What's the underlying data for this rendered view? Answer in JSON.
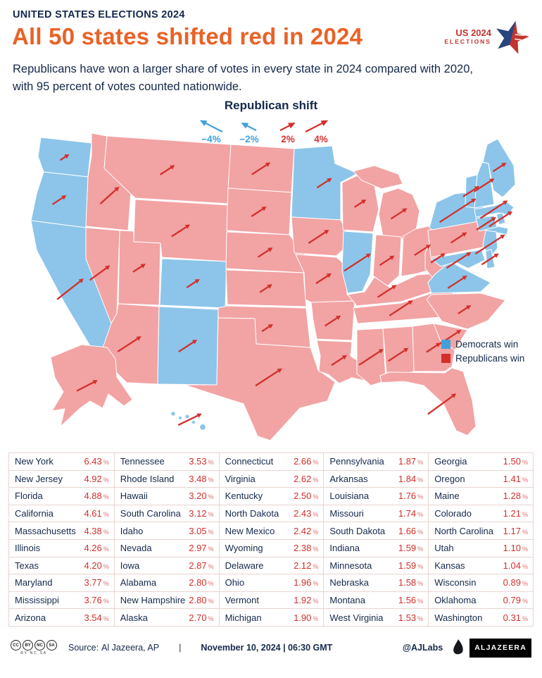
{
  "header": {
    "kicker": "UNITED STATES ELECTIONS 2024",
    "title": "All 50 states shifted red in 2024",
    "subtitle": "Republicans have won a larger share of votes in every state in 2024 compared with 2020, with 95 percent of votes counted nationwide.",
    "logo": {
      "line1": "US 2024",
      "line2": "ELECTIONS"
    }
  },
  "map_legend": {
    "title": "Republican shift",
    "ticks": [
      {
        "label": "−4%",
        "color": "dem"
      },
      {
        "label": "−2%",
        "color": "dem"
      },
      {
        "label": "2%",
        "color": "rep"
      },
      {
        "label": "4%",
        "color": "rep"
      }
    ]
  },
  "win_legend": {
    "dem": "Democrats win",
    "rep": "Republicans win"
  },
  "colors": {
    "navy": "#15284B",
    "orange": "#E96227",
    "dem_fill": "#8CC5E9",
    "rep_fill": "#F2A3A4",
    "dem_arrow": "#41A0DA",
    "rep_arrow": "#D2302C",
    "value_red": "#D2302C",
    "grid_line": "#E8D4D0"
  },
  "chart_data": {
    "type": "map",
    "title": "Republican vote-share shift by state, 2024 vs 2020 (percentage points)",
    "note": "95 percent of votes counted nationwide",
    "legend": [
      "Democrats win",
      "Republicans win"
    ],
    "shift_axis_ticks": [
      "−4%",
      "−2%",
      "2%",
      "4%"
    ],
    "unit_suffix": "%",
    "states": [
      {
        "code": "NY",
        "name": "New York",
        "shift": 6.43,
        "winner": "dem"
      },
      {
        "code": "NJ",
        "name": "New Jersey",
        "shift": 4.92,
        "winner": "dem"
      },
      {
        "code": "FL",
        "name": "Florida",
        "shift": 4.88,
        "winner": "rep"
      },
      {
        "code": "CA",
        "name": "California",
        "shift": 4.61,
        "winner": "dem"
      },
      {
        "code": "MA",
        "name": "Massachusetts",
        "shift": 4.38,
        "winner": "dem"
      },
      {
        "code": "IL",
        "name": "Illinois",
        "shift": 4.26,
        "winner": "dem"
      },
      {
        "code": "TX",
        "name": "Texas",
        "shift": 4.2,
        "winner": "rep"
      },
      {
        "code": "MD",
        "name": "Maryland",
        "shift": 3.77,
        "winner": "dem"
      },
      {
        "code": "MS",
        "name": "Mississippi",
        "shift": 3.76,
        "winner": "rep"
      },
      {
        "code": "AZ",
        "name": "Arizona",
        "shift": 3.54,
        "winner": "rep"
      },
      {
        "code": "TN",
        "name": "Tennessee",
        "shift": 3.53,
        "winner": "rep"
      },
      {
        "code": "RI",
        "name": "Rhode Island",
        "shift": 3.48,
        "winner": "dem"
      },
      {
        "code": "HI",
        "name": "Hawaii",
        "shift": 3.2,
        "winner": "dem"
      },
      {
        "code": "SC",
        "name": "South Carolina",
        "shift": 3.12,
        "winner": "rep"
      },
      {
        "code": "ID",
        "name": "Idaho",
        "shift": 3.05,
        "winner": "rep"
      },
      {
        "code": "NV",
        "name": "Nevada",
        "shift": 2.97,
        "winner": "rep"
      },
      {
        "code": "IA",
        "name": "Iowa",
        "shift": 2.87,
        "winner": "rep"
      },
      {
        "code": "AL",
        "name": "Alabama",
        "shift": 2.8,
        "winner": "rep"
      },
      {
        "code": "NH",
        "name": "New Hampshire",
        "shift": 2.8,
        "winner": "dem"
      },
      {
        "code": "AK",
        "name": "Alaska",
        "shift": 2.7,
        "winner": "rep"
      },
      {
        "code": "CT",
        "name": "Connecticut",
        "shift": 2.66,
        "winner": "dem"
      },
      {
        "code": "VA",
        "name": "Virginia",
        "shift": 2.62,
        "winner": "dem"
      },
      {
        "code": "KY",
        "name": "Kentucky",
        "shift": 2.5,
        "winner": "rep"
      },
      {
        "code": "ND",
        "name": "North Dakota",
        "shift": 2.43,
        "winner": "rep"
      },
      {
        "code": "NM",
        "name": "New Mexico",
        "shift": 2.42,
        "winner": "dem"
      },
      {
        "code": "WY",
        "name": "Wyoming",
        "shift": 2.38,
        "winner": "rep"
      },
      {
        "code": "DE",
        "name": "Delaware",
        "shift": 2.12,
        "winner": "dem"
      },
      {
        "code": "OH",
        "name": "Ohio",
        "shift": 1.96,
        "winner": "rep"
      },
      {
        "code": "VT",
        "name": "Vermont",
        "shift": 1.92,
        "winner": "dem"
      },
      {
        "code": "MI",
        "name": "Michigan",
        "shift": 1.9,
        "winner": "rep"
      },
      {
        "code": "PA",
        "name": "Pennsylvania",
        "shift": 1.87,
        "winner": "rep"
      },
      {
        "code": "AR",
        "name": "Arkansas",
        "shift": 1.84,
        "winner": "rep"
      },
      {
        "code": "LA",
        "name": "Louisiana",
        "shift": 1.76,
        "winner": "rep"
      },
      {
        "code": "MO",
        "name": "Missouri",
        "shift": 1.74,
        "winner": "rep"
      },
      {
        "code": "SD",
        "name": "South Dakota",
        "shift": 1.66,
        "winner": "rep"
      },
      {
        "code": "IN",
        "name": "Indiana",
        "shift": 1.59,
        "winner": "rep"
      },
      {
        "code": "MN",
        "name": "Minnesota",
        "shift": 1.59,
        "winner": "dem"
      },
      {
        "code": "NE",
        "name": "Nebraska",
        "shift": 1.58,
        "winner": "rep"
      },
      {
        "code": "MT",
        "name": "Montana",
        "shift": 1.56,
        "winner": "rep"
      },
      {
        "code": "WV",
        "name": "West Virginia",
        "shift": 1.53,
        "winner": "rep"
      },
      {
        "code": "GA",
        "name": "Georgia",
        "shift": 1.5,
        "winner": "rep"
      },
      {
        "code": "OR",
        "name": "Oregon",
        "shift": 1.41,
        "winner": "dem"
      },
      {
        "code": "ME",
        "name": "Maine",
        "shift": 1.28,
        "winner": "dem"
      },
      {
        "code": "CO",
        "name": "Colorado",
        "shift": 1.21,
        "winner": "dem"
      },
      {
        "code": "NC",
        "name": "North Carolina",
        "shift": 1.17,
        "winner": "rep"
      },
      {
        "code": "UT",
        "name": "Utah",
        "shift": 1.1,
        "winner": "rep"
      },
      {
        "code": "KS",
        "name": "Kansas",
        "shift": 1.04,
        "winner": "rep"
      },
      {
        "code": "WI",
        "name": "Wisconsin",
        "shift": 0.89,
        "winner": "rep"
      },
      {
        "code": "OK",
        "name": "Oklahoma",
        "shift": 0.79,
        "winner": "rep"
      },
      {
        "code": "WA",
        "name": "Washington",
        "shift": 0.31,
        "winner": "dem"
      }
    ]
  },
  "footer": {
    "cc_icons": [
      "CC",
      "BY",
      "NC",
      "SA"
    ],
    "license": "BY NC SA",
    "source_label": "Source:",
    "source": "Al Jazeera, AP",
    "divider": "|",
    "date": "November 10, 2024 | 06:30 GMT",
    "credit": "@AJLabs",
    "brand": "ALJAZEERA"
  }
}
